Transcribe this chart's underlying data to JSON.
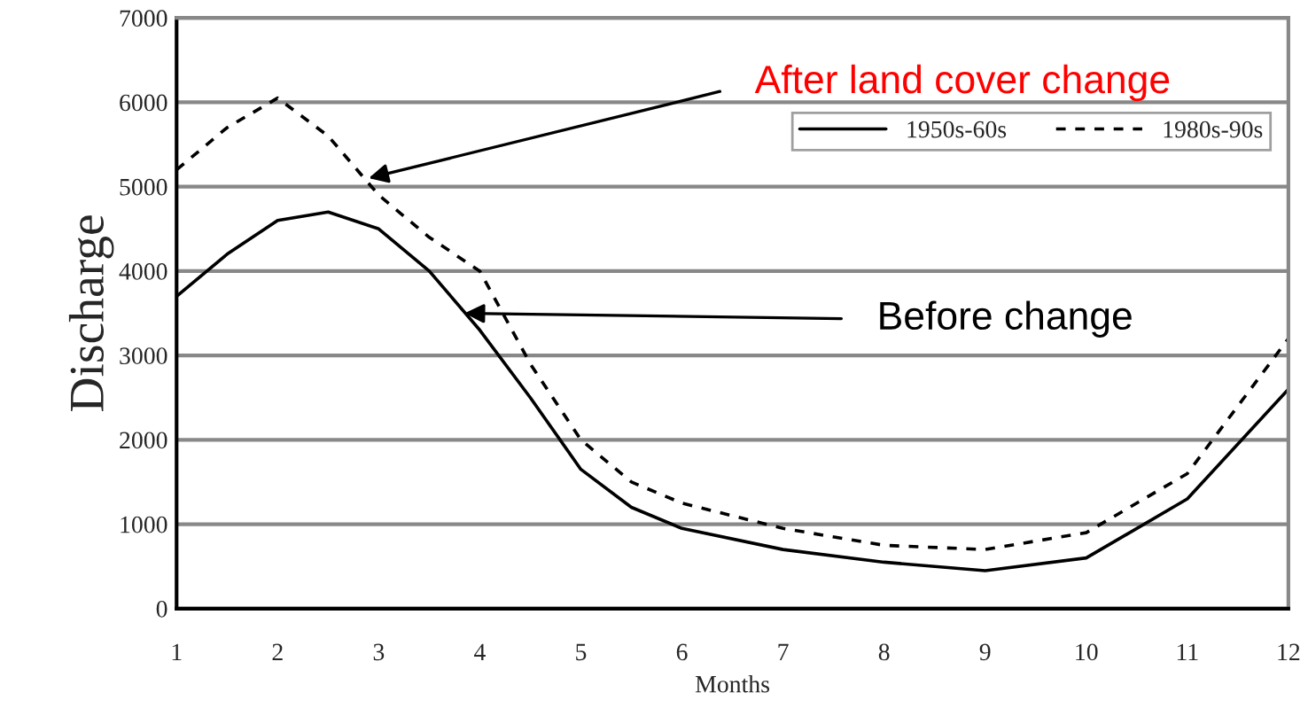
{
  "chart_data": {
    "type": "line",
    "xlabel": "Months",
    "ylabel": "Discharge",
    "xlim": [
      1,
      12
    ],
    "xticks": [
      1,
      2,
      3,
      4,
      5,
      6,
      7,
      8,
      9,
      10,
      11,
      12
    ],
    "ylim": [
      0,
      7000
    ],
    "yticks": [
      0,
      1000,
      2000,
      3000,
      4000,
      5000,
      6000,
      7000
    ],
    "grid": "y",
    "legend": "top right",
    "marker": "none",
    "series": [
      {
        "name": "1950s-60s",
        "color": "#000000",
        "line_style": "solid",
        "x": [
          1,
          1.5,
          2,
          2.5,
          3,
          3.5,
          4,
          4.5,
          5,
          5.5,
          6,
          7,
          8,
          9,
          10,
          11,
          12
        ],
        "values": [
          3700,
          4200,
          4600,
          4700,
          4500,
          4000,
          3300,
          2500,
          1650,
          1200,
          950,
          700,
          550,
          450,
          600,
          1300,
          2600
        ]
      },
      {
        "name": "1980s-90s",
        "color": "#000000",
        "line_style": "dashed",
        "x": [
          1,
          1.5,
          2,
          2.5,
          3,
          3.5,
          4,
          4.5,
          5,
          5.5,
          6,
          7,
          8,
          9,
          10,
          11,
          12
        ],
        "values": [
          5200,
          5700,
          6050,
          5600,
          4900,
          4400,
          4000,
          2900,
          2000,
          1500,
          1250,
          950,
          750,
          700,
          900,
          1600,
          3200
        ]
      }
    ],
    "annotations": [
      {
        "text": "After land cover change",
        "x": 2.9,
        "y": 5100
      },
      {
        "text": "Before change",
        "x": 3.85,
        "y": 3500
      }
    ]
  }
}
